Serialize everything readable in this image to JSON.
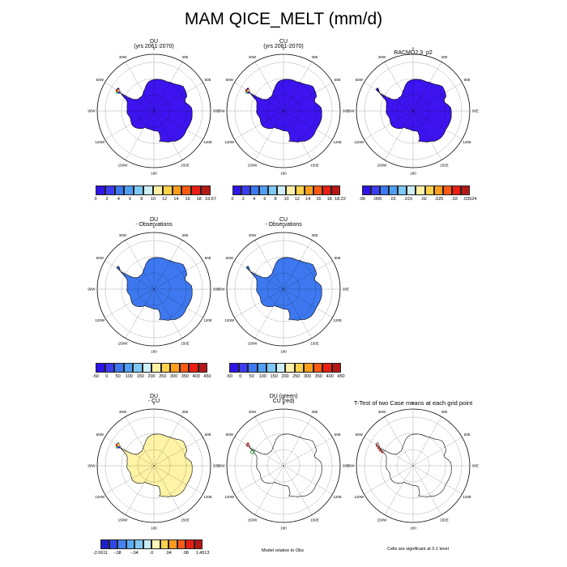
{
  "figure": {
    "title": "MAM QICE_MELT (mm/d)"
  },
  "longitude_labels": [
    "0",
    "30E",
    "60E",
    "90E",
    "120E",
    "150E",
    "180",
    "150W",
    "120W",
    "90W",
    "60W",
    "30W"
  ],
  "colors": {
    "abs_palette": [
      "#2e14e6",
      "#3c3cf5",
      "#3d78f2",
      "#4fa0f5",
      "#7dc8f5",
      "#cdeef5",
      "#fff0a6",
      "#ffd24a",
      "#ff9e1a",
      "#ff5a14",
      "#ea1e12",
      "#b41818"
    ],
    "diff_palette": [
      "#1e1ec8",
      "#3246e6",
      "#4682f0",
      "#5aaaf5",
      "#82c8f5",
      "#c8ebf5",
      "#fff5b4",
      "#ffd250",
      "#ff9a1e",
      "#ff5a14",
      "#e61e14",
      "#b41818"
    ]
  },
  "chart_data": [
    {
      "type": "map",
      "id": "du",
      "title": "DU",
      "subtitle": "(yrs 2061-2070)",
      "fill_color": "#3d14f0",
      "hotspot": {
        "lon": -62,
        "lat": -65,
        "value": 19.67
      },
      "colorbar": {
        "ticks": [
          "0",
          "2",
          "4",
          "6",
          "8",
          "10",
          "12",
          "14",
          "16",
          "18",
          "19.67"
        ],
        "range": [
          0,
          19.67
        ]
      }
    },
    {
      "type": "map",
      "id": "cu",
      "title": "CU",
      "subtitle": "(yrs 2061-2070)",
      "fill_color": "#3d14f0",
      "hotspot": {
        "lon": -62,
        "lat": -65,
        "value": 18.22
      },
      "colorbar": {
        "ticks": [
          "0",
          "2",
          "4",
          "6",
          "8",
          "10",
          "12",
          "14",
          "16",
          "18",
          "18.22"
        ],
        "range": [
          0,
          18.22
        ]
      }
    },
    {
      "type": "map",
      "id": "racmo",
      "title": "RACMO2.3_p2",
      "subtitle": "",
      "fill_color": "#3d14f0",
      "colorbar": {
        "ticks": [
          ".00",
          ".005",
          ".01",
          ".015",
          ".02",
          ".025",
          ".03",
          ".03524"
        ],
        "range": [
          0,
          0.03524
        ]
      }
    },
    {
      "type": "map",
      "id": "du-obs",
      "title": "DU",
      "subtitle": "- Observations",
      "fill_color": "#3d78f0",
      "colorbar": {
        "ticks": [
          "-50",
          "0",
          "50",
          "100",
          "150",
          "200",
          "250",
          "300",
          "350",
          "400",
          "450"
        ],
        "range": [
          -50,
          450
        ]
      }
    },
    {
      "type": "map",
      "id": "cu-obs",
      "title": "CU",
      "subtitle": "- Observations",
      "fill_color": "#3d78f0",
      "colorbar": {
        "ticks": [
          "-50",
          "0",
          "50",
          "100",
          "150",
          "200",
          "250",
          "300",
          "350",
          "400",
          "450"
        ],
        "range": [
          -50,
          450
        ]
      }
    },
    {
      "type": "map",
      "id": "du-cu",
      "title": "DU",
      "subtitle": "- CU",
      "fill_color": "#fff3a6",
      "hotspot": {
        "lon": -62,
        "lat": -65,
        "value": -2.0611
      },
      "colorbar": {
        "ticks": [
          "-2.0611",
          "-.08",
          "-.04",
          ".0",
          ".04",
          ".08",
          "1.4513"
        ],
        "range": [
          -2.0611,
          1.4513
        ]
      }
    },
    {
      "type": "map",
      "id": "model-rel-obs",
      "title": "DU (green)",
      "subtitle": "CU (red)",
      "fill_color": "none",
      "note": "Model relative to Obs"
    },
    {
      "type": "map",
      "id": "ttest",
      "title": "T-Test of two Case means at each grid point",
      "subtitle": "",
      "fill_color": "none",
      "note": "Cells are significant at 0.1 level"
    }
  ]
}
